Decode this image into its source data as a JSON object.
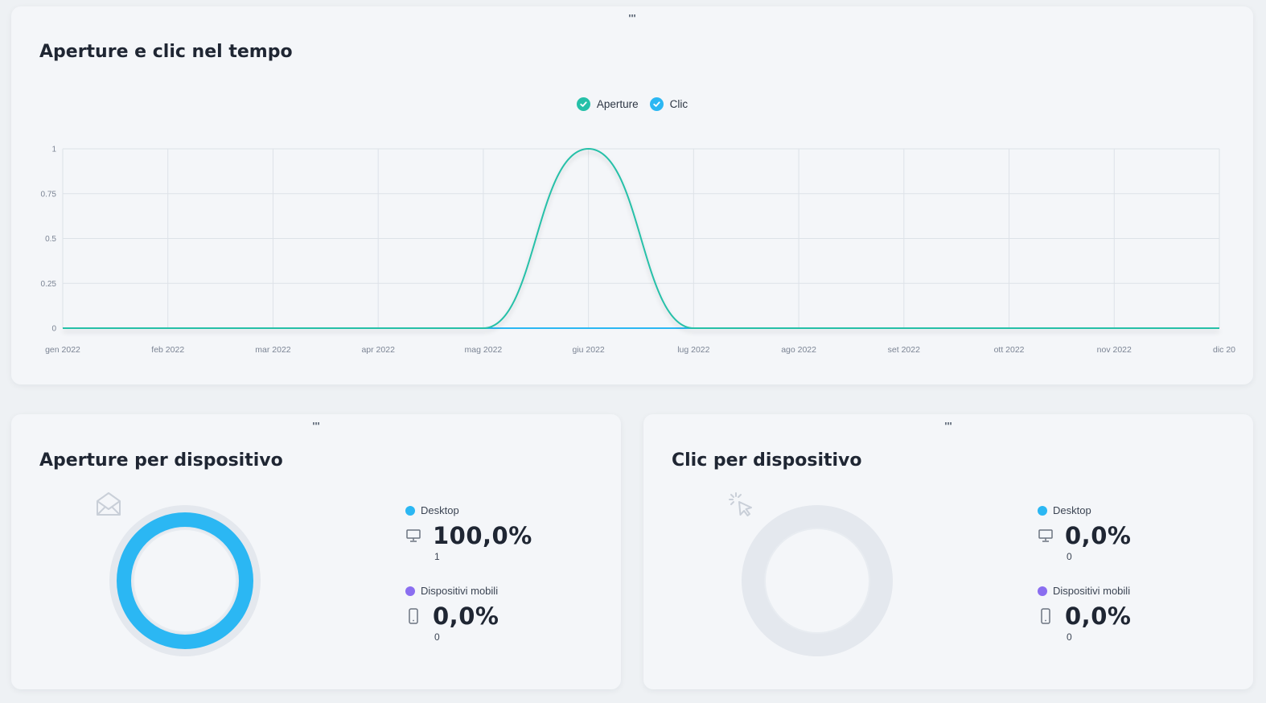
{
  "colors": {
    "aperture": "#25c0a8",
    "clic": "#2bb7f3",
    "desktop": "#2bb7f3",
    "mobile": "#8a6ef0",
    "grid": "#dde2e8",
    "donut_track": "#e6eaef"
  },
  "handle": "'''",
  "timeline": {
    "title": "Aperture e clic nel tempo",
    "legend": [
      {
        "label": "Aperture",
        "color": "#25c0a8",
        "icon": "check-icon"
      },
      {
        "label": "Clic",
        "color": "#2bb7f3",
        "icon": "check-icon"
      }
    ]
  },
  "chart_data": {
    "type": "line",
    "x": [
      "gen 2022",
      "feb 2022",
      "mar 2022",
      "apr 2022",
      "mag 2022",
      "giu 2022",
      "lug 2022",
      "ago 2022",
      "set 2022",
      "ott 2022",
      "nov 2022",
      "dic 20"
    ],
    "series": [
      {
        "name": "Aperture",
        "values": [
          0,
          0,
          0,
          0,
          0,
          1,
          0,
          0,
          0,
          0,
          0,
          0
        ]
      },
      {
        "name": "Clic",
        "values": [
          0,
          0,
          0,
          0,
          0,
          0,
          0,
          0,
          0,
          0,
          0,
          0
        ]
      }
    ],
    "yticks": [
      "0",
      "0.25",
      "0.5",
      "0.75",
      "1"
    ],
    "ylim": [
      0,
      1
    ],
    "grid": true,
    "legend": "top-center",
    "smooth": true
  },
  "opens_by_device": {
    "title": "Aperture per dispositivo",
    "center_icon": "envelope-icon",
    "ring_fraction": 1.0,
    "desktop": {
      "label": "Desktop",
      "icon": "monitor-icon",
      "percent": "100,0%",
      "count": "1"
    },
    "mobile": {
      "label": "Dispositivi mobili",
      "icon": "phone-icon",
      "percent": "0,0%",
      "count": "0"
    }
  },
  "clicks_by_device": {
    "title": "Clic per dispositivo",
    "center_icon": "cursor-click-icon",
    "ring_fraction": 0.0,
    "desktop": {
      "label": "Desktop",
      "icon": "monitor-icon",
      "percent": "0,0%",
      "count": "0"
    },
    "mobile": {
      "label": "Dispositivi mobili",
      "icon": "phone-icon",
      "percent": "0,0%",
      "count": "0"
    }
  }
}
